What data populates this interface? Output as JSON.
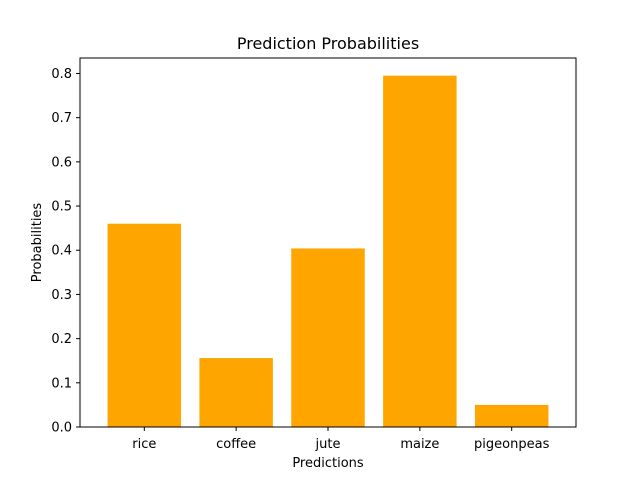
{
  "chart_data": {
    "type": "bar",
    "title": "Prediction Probabilities",
    "xlabel": "Predictions",
    "ylabel": "Probabilities",
    "categories": [
      "rice",
      "coffee",
      "jute",
      "maize",
      "pigeonpeas"
    ],
    "values": [
      0.46,
      0.156,
      0.404,
      0.795,
      0.05
    ],
    "ylim": [
      0,
      0.835
    ],
    "yticks": [
      "0.0",
      "0.1",
      "0.2",
      "0.3",
      "0.4",
      "0.5",
      "0.6",
      "0.7",
      "0.8"
    ],
    "bar_color": "#FFA500",
    "grid": false,
    "legend": "none"
  }
}
